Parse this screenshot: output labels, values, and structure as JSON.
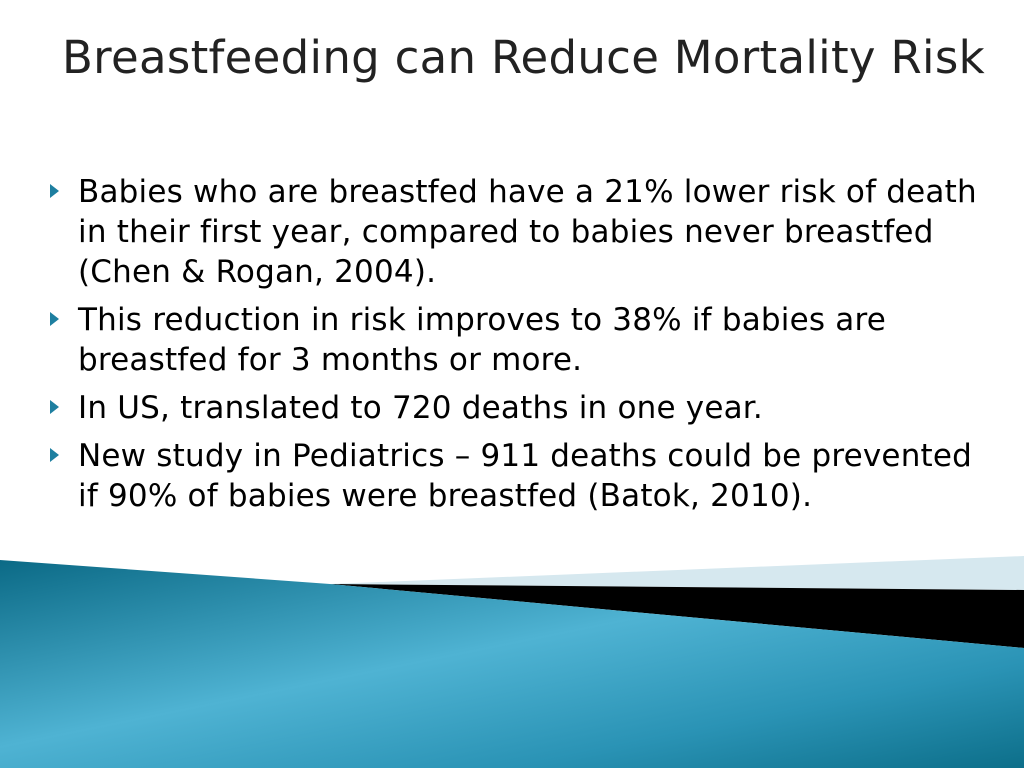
{
  "slide": {
    "title": "Breastfeeding can Reduce Mortality Risk",
    "bullets": [
      "Babies who are breastfed have a 21% lower risk of death in their first year, compared to babies never breastfed (Chen & Rogan, 2004).",
      "This reduction in risk improves to 38% if babies are breastfed for 3 months or more.",
      "In US, translated to 720 deaths in one year.",
      "New study in Pediatrics – 911 deaths could be prevented if 90% of babies were breastfed (Batok, 2010)."
    ],
    "bullet_icon": "triangle-bullet-icon"
  },
  "theme": {
    "accent": "#1e7fa0",
    "wave_light": "#5bbcd8",
    "wave_dark": "#0d6f8a",
    "band_black": "#000000",
    "band_pale": "#d6e8ef"
  }
}
